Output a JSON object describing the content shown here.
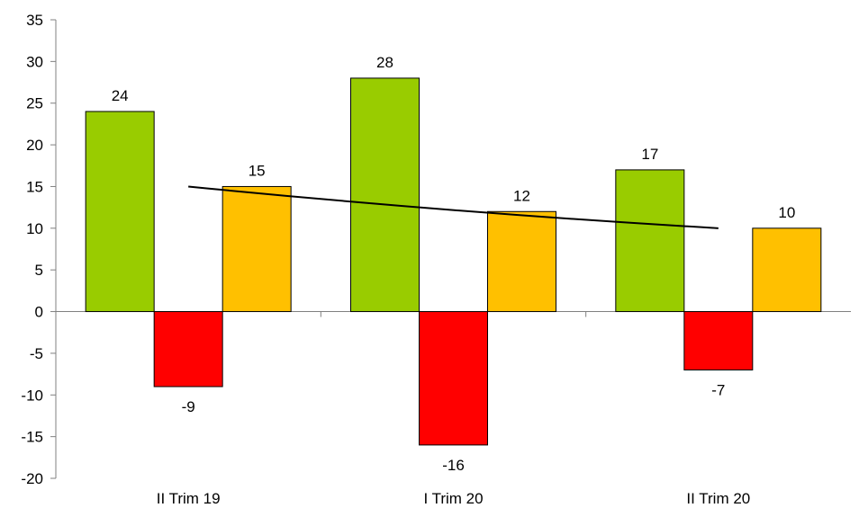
{
  "chart_data": {
    "type": "bar",
    "title": "",
    "xlabel": "",
    "ylabel": "",
    "categories": [
      "II Trim 19",
      "I Trim 20",
      "II Trim 20"
    ],
    "series": [
      {
        "color": "#99cc00",
        "values": [
          24,
          28,
          17
        ]
      },
      {
        "color": "#ff0000",
        "values": [
          -9,
          -16,
          -7
        ]
      },
      {
        "color": "#ffc000",
        "values": [
          15,
          12,
          10
        ]
      }
    ],
    "ylim": [
      -20,
      35
    ],
    "yticks": [
      35,
      30,
      25,
      20,
      15,
      10,
      5,
      0,
      -5,
      -10,
      -15,
      -20
    ],
    "grid": false,
    "legend": "none",
    "trendline": {
      "type": "line",
      "color": "#000000",
      "x_start": "II Trim 19",
      "x_end": "II Trim 20",
      "values": [
        15,
        10
      ]
    }
  }
}
